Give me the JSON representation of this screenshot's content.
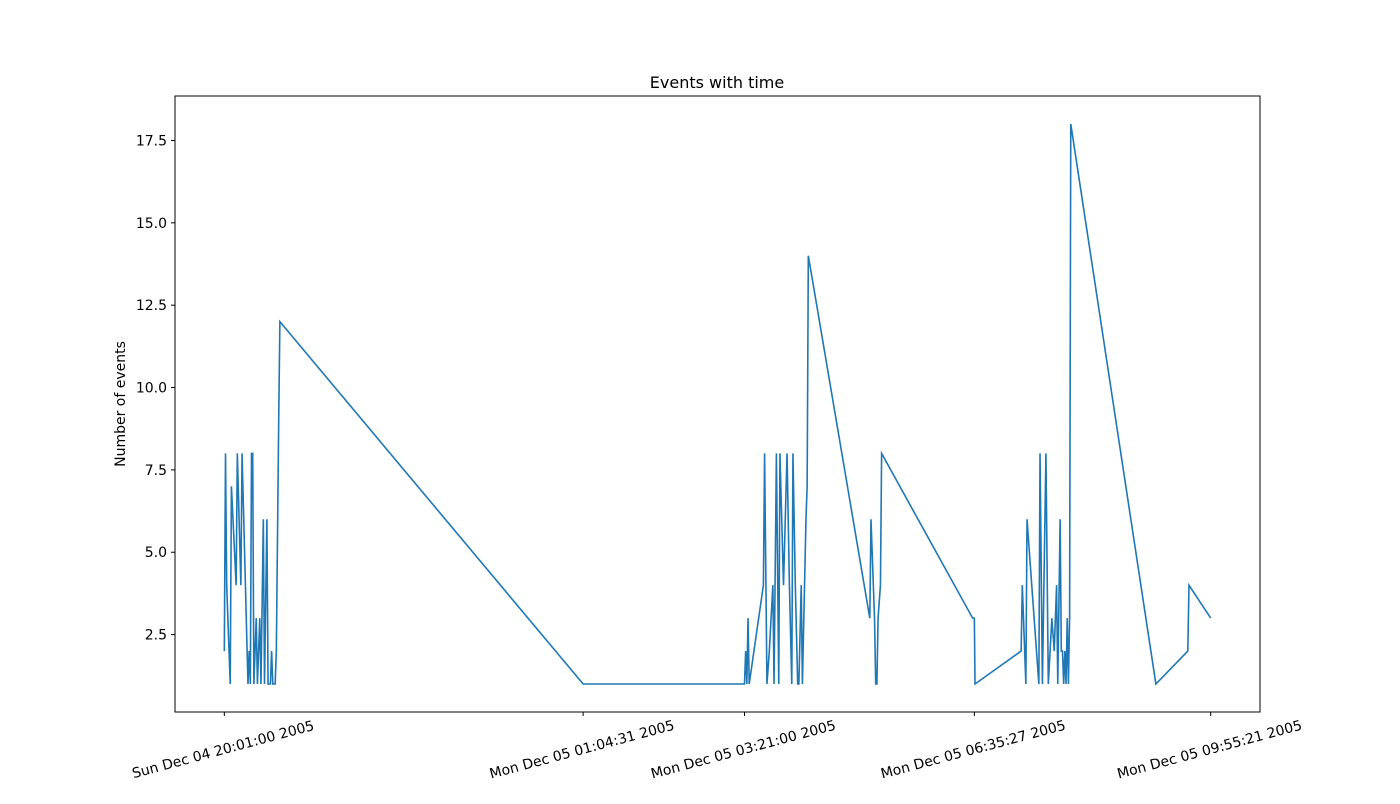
{
  "chart_data": {
    "type": "line",
    "title": "Events with time",
    "y_label": "Number of events",
    "color": "#1f77b4",
    "xlim": [
      "2005-12-04 19:19:17",
      "2005-12-05 10:37:04"
    ],
    "xticks": [
      {
        "value": "2005-12-04 20:01:00",
        "label": "Sun Dec 04 20:01:00 2005"
      },
      {
        "value": "2005-12-05 01:04:31",
        "label": "Mon Dec 05 01:04:31 2005"
      },
      {
        "value": "2005-12-05 03:21:00",
        "label": "Mon Dec 05 03:21:00 2005"
      },
      {
        "value": "2005-12-05 06:35:27",
        "label": "Mon Dec 05 06:35:27 2005"
      },
      {
        "value": "2005-12-05 09:55:21",
        "label": "Mon Dec 05 09:55:21 2005"
      }
    ],
    "ylim": [
      0.15,
      18.85
    ],
    "yticks": [
      2.5,
      {
        "value": 5,
        "label": "5.0"
      },
      7.5,
      {
        "value": 10,
        "label": "10.0"
      },
      12.5,
      {
        "value": 15,
        "label": "15.0"
      },
      17.5
    ],
    "x": [
      "2005-12-04 20:01:00",
      "2005-12-04 20:02:00",
      "2005-12-04 20:03:00",
      "2005-12-04 20:06:00",
      "2005-12-04 20:07:00",
      "2005-12-04 20:11:00",
      "2005-12-04 20:12:00",
      "2005-12-04 20:15:00",
      "2005-12-04 20:16:00",
      "2005-12-04 20:21:00",
      "2005-12-04 20:22:00",
      "2005-12-04 20:23:00",
      "2005-12-04 20:24:00",
      "2005-12-04 20:25:00",
      "2005-12-04 20:26:00",
      "2005-12-04 20:27:00",
      "2005-12-04 20:28:00",
      "2005-12-04 20:29:00",
      "2005-12-04 20:31:00",
      "2005-12-04 20:32:00",
      "2005-12-04 20:34:00",
      "2005-12-04 20:35:00",
      "2005-12-04 20:37:00",
      "2005-12-04 20:38:00",
      "2005-12-04 20:40:00",
      "2005-12-04 20:41:00",
      "2005-12-04 20:42:00",
      "2005-12-04 20:44:00",
      "2005-12-04 20:45:00",
      "2005-12-04 20:47:00",
      "2005-12-04 20:48:00",
      "2005-12-05 01:04:31",
      "2005-12-05 03:21:00",
      "2005-12-05 03:22:00",
      "2005-12-05 03:23:00",
      "2005-12-05 03:24:00",
      "2005-12-05 03:25:00",
      "2005-12-05 03:37:00",
      "2005-12-05 03:38:00",
      "2005-12-05 03:40:00",
      "2005-12-05 03:42:00",
      "2005-12-05 03:45:00",
      "2005-12-05 03:46:00",
      "2005-12-05 03:48:00",
      "2005-12-05 03:50:00",
      "2005-12-05 03:51:00",
      "2005-12-05 03:54:00",
      "2005-12-05 03:57:00",
      "2005-12-05 03:59:00",
      "2005-12-05 04:01:00",
      "2005-12-05 04:02:00",
      "2005-12-05 04:04:00",
      "2005-12-05 04:06:00",
      "2005-12-05 04:07:00",
      "2005-12-05 04:09:00",
      "2005-12-05 04:10:00",
      "2005-12-05 04:13:00",
      "2005-12-05 04:14:00",
      "2005-12-05 04:15:00",
      "2005-12-05 05:07:00",
      "2005-12-05 05:08:00",
      "2005-12-05 05:11:00",
      "2005-12-05 05:12:00",
      "2005-12-05 05:13:00",
      "2005-12-05 05:14:00",
      "2005-12-05 05:16:00",
      "2005-12-05 05:17:00",
      "2005-12-05 06:34:00",
      "2005-12-05 06:35:27",
      "2005-12-05 06:36:00",
      "2005-12-05 07:15:00",
      "2005-12-05 07:16:00",
      "2005-12-05 07:19:00",
      "2005-12-05 07:20:00",
      "2005-12-05 07:30:00",
      "2005-12-05 07:31:00",
      "2005-12-05 07:33:00",
      "2005-12-05 07:36:00",
      "2005-12-05 07:38:00",
      "2005-12-05 07:41:00",
      "2005-12-05 07:43:00",
      "2005-12-05 07:45:00",
      "2005-12-05 07:46:00",
      "2005-12-05 07:48:00",
      "2005-12-05 07:49:00",
      "2005-12-05 07:50:00",
      "2005-12-05 07:51:00",
      "2005-12-05 07:52:00",
      "2005-12-05 07:53:00",
      "2005-12-05 07:54:00",
      "2005-12-05 07:55:00",
      "2005-12-05 07:56:00",
      "2005-12-05 07:57:00",
      "2005-12-05 09:09:00",
      "2005-12-05 09:36:00",
      "2005-12-05 09:37:00",
      "2005-12-05 09:55:21"
    ],
    "values": [
      2,
      8,
      4,
      1,
      7,
      4,
      8,
      4,
      8,
      1,
      2,
      1,
      8,
      8,
      1,
      2,
      3,
      1,
      3,
      1,
      6,
      1,
      6,
      1,
      1,
      2,
      1,
      1,
      2,
      9,
      12,
      1,
      1,
      2,
      1,
      3,
      1,
      4,
      8,
      1,
      2,
      4,
      1,
      8,
      1,
      8,
      4,
      8,
      4,
      1,
      8,
      4,
      1,
      1,
      4,
      1,
      6,
      7,
      14,
      3,
      6,
      3,
      1,
      1,
      3,
      4,
      8,
      3,
      3,
      1,
      2,
      4,
      1,
      6,
      1,
      8,
      1,
      8,
      1,
      3,
      2,
      4,
      1,
      6,
      2,
      2,
      1,
      2,
      1,
      3,
      1,
      3,
      18,
      1,
      2,
      4,
      3
    ]
  }
}
